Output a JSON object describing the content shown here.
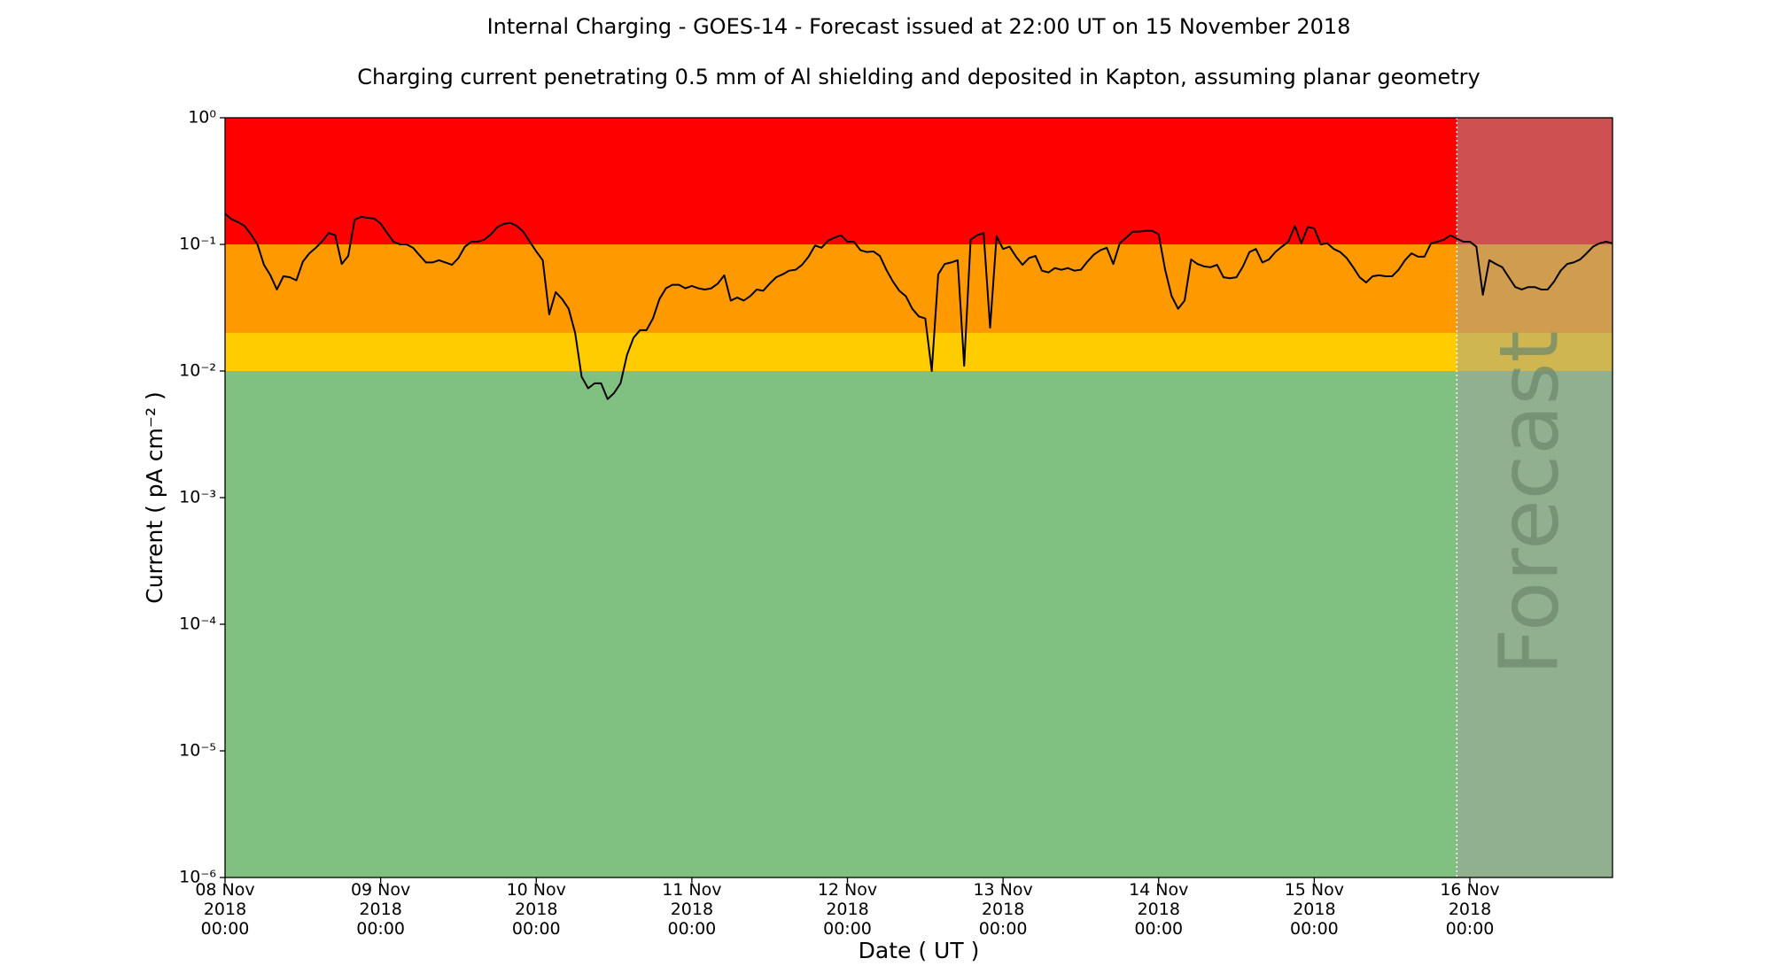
{
  "chart_data": {
    "type": "line",
    "title": "Internal Charging - GOES-14 - Forecast issued at 22:00 UT on 15 November 2018",
    "subtitle": "Charging current penetrating 0.5 mm of Al shielding and deposited in Kapton, assuming planar geometry",
    "xlabel": "Date ( UT )",
    "ylabel": "Current ( pA cm⁻² )",
    "yscale": "log",
    "ylim": [
      1e-06,
      1
    ],
    "yticks": [
      {
        "value": 1e-06,
        "label": "10⁻⁶"
      },
      {
        "value": 1e-05,
        "label": "10⁻⁵"
      },
      {
        "value": 0.0001,
        "label": "10⁻⁴"
      },
      {
        "value": 0.001,
        "label": "10⁻³"
      },
      {
        "value": 0.01,
        "label": "10⁻²"
      },
      {
        "value": 0.1,
        "label": "10⁻¹"
      },
      {
        "value": 1,
        "label": "10⁰"
      }
    ],
    "xlim": [
      "2018-11-08T00:00",
      "2018-11-16T22:00"
    ],
    "xticks": [
      {
        "value": "2018-11-08T00:00",
        "label": [
          "08 Nov",
          "2018",
          "00:00"
        ]
      },
      {
        "value": "2018-11-09T00:00",
        "label": [
          "09 Nov",
          "2018",
          "00:00"
        ]
      },
      {
        "value": "2018-11-10T00:00",
        "label": [
          "10 Nov",
          "2018",
          "00:00"
        ]
      },
      {
        "value": "2018-11-11T00:00",
        "label": [
          "11 Nov",
          "2018",
          "00:00"
        ]
      },
      {
        "value": "2018-11-12T00:00",
        "label": [
          "12 Nov",
          "2018",
          "00:00"
        ]
      },
      {
        "value": "2018-11-13T00:00",
        "label": [
          "13 Nov",
          "2018",
          "00:00"
        ]
      },
      {
        "value": "2018-11-14T00:00",
        "label": [
          "14 Nov",
          "2018",
          "00:00"
        ]
      },
      {
        "value": "2018-11-15T00:00",
        "label": [
          "15 Nov",
          "2018",
          "00:00"
        ]
      },
      {
        "value": "2018-11-16T00:00",
        "label": [
          "16 Nov",
          "2018",
          "00:00"
        ]
      }
    ],
    "bands": [
      {
        "from": 1e-06,
        "to": 0.01,
        "color": "#80c080"
      },
      {
        "from": 0.01,
        "to": 0.02,
        "color": "#ffcc00"
      },
      {
        "from": 0.02,
        "to": 0.1,
        "color": "#ff9900"
      },
      {
        "from": 0.1,
        "to": 1,
        "color": "#ff0000"
      }
    ],
    "forecast": {
      "start": "2018-11-15T22:00",
      "end": "2018-11-16T22:00",
      "label": "Forecast",
      "color": "#a0a0a0"
    },
    "x": [
      "2018-11-08T00:00",
      "2018-11-08T01:00",
      "2018-11-08T02:00",
      "2018-11-08T03:00",
      "2018-11-08T04:00",
      "2018-11-08T05:00",
      "2018-11-08T06:00",
      "2018-11-08T07:00",
      "2018-11-08T08:00",
      "2018-11-08T09:00",
      "2018-11-08T10:00",
      "2018-11-08T11:00",
      "2018-11-08T12:00",
      "2018-11-08T13:00",
      "2018-11-08T14:00",
      "2018-11-08T15:00",
      "2018-11-08T16:00",
      "2018-11-08T17:00",
      "2018-11-08T18:00",
      "2018-11-08T19:00",
      "2018-11-08T20:00",
      "2018-11-08T21:00",
      "2018-11-08T22:00",
      "2018-11-08T23:00",
      "2018-11-09T00:00",
      "2018-11-09T01:00",
      "2018-11-09T02:00",
      "2018-11-09T03:00",
      "2018-11-09T04:00",
      "2018-11-09T05:00",
      "2018-11-09T06:00",
      "2018-11-09T07:00",
      "2018-11-09T08:00",
      "2018-11-09T09:00",
      "2018-11-09T10:00",
      "2018-11-09T11:00",
      "2018-11-09T12:00",
      "2018-11-09T13:00",
      "2018-11-09T14:00",
      "2018-11-09T15:00",
      "2018-11-09T16:00",
      "2018-11-09T17:00",
      "2018-11-09T18:00",
      "2018-11-09T19:00",
      "2018-11-09T20:00",
      "2018-11-09T21:00",
      "2018-11-09T22:00",
      "2018-11-09T23:00",
      "2018-11-10T00:00",
      "2018-11-10T01:00",
      "2018-11-10T02:00",
      "2018-11-10T03:00",
      "2018-11-10T04:00",
      "2018-11-10T05:00",
      "2018-11-10T06:00",
      "2018-11-10T07:00",
      "2018-11-10T08:00",
      "2018-11-10T09:00",
      "2018-11-10T10:00",
      "2018-11-10T11:00",
      "2018-11-10T12:00",
      "2018-11-10T13:00",
      "2018-11-10T14:00",
      "2018-11-10T15:00",
      "2018-11-10T16:00",
      "2018-11-10T17:00",
      "2018-11-10T18:00",
      "2018-11-10T19:00",
      "2018-11-10T20:00",
      "2018-11-10T21:00",
      "2018-11-10T22:00",
      "2018-11-10T23:00",
      "2018-11-11T00:00",
      "2018-11-11T01:00",
      "2018-11-11T02:00",
      "2018-11-11T03:00",
      "2018-11-11T04:00",
      "2018-11-11T05:00",
      "2018-11-11T06:00",
      "2018-11-11T07:00",
      "2018-11-11T08:00",
      "2018-11-11T09:00",
      "2018-11-11T10:00",
      "2018-11-11T11:00",
      "2018-11-11T12:00",
      "2018-11-11T13:00",
      "2018-11-11T14:00",
      "2018-11-11T15:00",
      "2018-11-11T16:00",
      "2018-11-11T17:00",
      "2018-11-11T18:00",
      "2018-11-11T19:00",
      "2018-11-11T20:00",
      "2018-11-11T21:00",
      "2018-11-11T22:00",
      "2018-11-11T23:00",
      "2018-11-12T00:00",
      "2018-11-12T01:00",
      "2018-11-12T02:00",
      "2018-11-12T03:00",
      "2018-11-12T04:00",
      "2018-11-12T05:00",
      "2018-11-12T06:00",
      "2018-11-12T07:00",
      "2018-11-12T08:00",
      "2018-11-12T09:00",
      "2018-11-12T10:00",
      "2018-11-12T11:00",
      "2018-11-12T12:00",
      "2018-11-12T13:00",
      "2018-11-12T14:00",
      "2018-11-12T15:00",
      "2018-11-12T16:00",
      "2018-11-12T17:00",
      "2018-11-12T18:00",
      "2018-11-12T19:00",
      "2018-11-12T20:00",
      "2018-11-12T21:00",
      "2018-11-12T22:00",
      "2018-11-12T23:00",
      "2018-11-13T00:00",
      "2018-11-13T01:00",
      "2018-11-13T02:00",
      "2018-11-13T03:00",
      "2018-11-13T04:00",
      "2018-11-13T05:00",
      "2018-11-13T06:00",
      "2018-11-13T07:00",
      "2018-11-13T08:00",
      "2018-11-13T09:00",
      "2018-11-13T10:00",
      "2018-11-13T11:00",
      "2018-11-13T12:00",
      "2018-11-13T13:00",
      "2018-11-13T14:00",
      "2018-11-13T15:00",
      "2018-11-13T16:00",
      "2018-11-13T17:00",
      "2018-11-13T18:00",
      "2018-11-13T19:00",
      "2018-11-13T20:00",
      "2018-11-13T21:00",
      "2018-11-13T22:00",
      "2018-11-13T23:00",
      "2018-11-14T00:00",
      "2018-11-14T01:00",
      "2018-11-14T02:00",
      "2018-11-14T03:00",
      "2018-11-14T04:00",
      "2018-11-14T05:00",
      "2018-11-14T06:00",
      "2018-11-14T07:00",
      "2018-11-14T08:00",
      "2018-11-14T09:00",
      "2018-11-14T10:00",
      "2018-11-14T11:00",
      "2018-11-14T12:00",
      "2018-11-14T13:00",
      "2018-11-14T14:00",
      "2018-11-14T15:00",
      "2018-11-14T16:00",
      "2018-11-14T17:00",
      "2018-11-14T18:00",
      "2018-11-14T19:00",
      "2018-11-14T20:00",
      "2018-11-14T21:00",
      "2018-11-14T22:00",
      "2018-11-14T23:00",
      "2018-11-15T00:00",
      "2018-11-15T01:00",
      "2018-11-15T02:00",
      "2018-11-15T03:00",
      "2018-11-15T04:00",
      "2018-11-15T05:00",
      "2018-11-15T06:00",
      "2018-11-15T07:00",
      "2018-11-15T08:00",
      "2018-11-15T09:00",
      "2018-11-15T10:00",
      "2018-11-15T11:00",
      "2018-11-15T12:00",
      "2018-11-15T13:00",
      "2018-11-15T14:00",
      "2018-11-15T15:00",
      "2018-11-15T16:00",
      "2018-11-15T17:00",
      "2018-11-15T18:00",
      "2018-11-15T19:00",
      "2018-11-15T20:00",
      "2018-11-15T21:00",
      "2018-11-15T22:00",
      "2018-11-15T23:00",
      "2018-11-16T00:00",
      "2018-11-16T01:00",
      "2018-11-16T02:00",
      "2018-11-16T03:00",
      "2018-11-16T04:00",
      "2018-11-16T05:00",
      "2018-11-16T06:00",
      "2018-11-16T07:00",
      "2018-11-16T08:00",
      "2018-11-16T09:00",
      "2018-11-16T10:00",
      "2018-11-16T11:00",
      "2018-11-16T12:00",
      "2018-11-16T13:00",
      "2018-11-16T14:00",
      "2018-11-16T15:00",
      "2018-11-16T16:00",
      "2018-11-16T17:00",
      "2018-11-16T18:00",
      "2018-11-16T19:00",
      "2018-11-16T20:00",
      "2018-11-16T21:00",
      "2018-11-16T22:00"
    ],
    "series": [
      {
        "color": "#000000",
        "values": [
          0.175,
          0.158,
          0.15,
          0.14,
          0.12,
          0.1,
          0.069,
          0.057,
          0.044,
          0.056,
          0.055,
          0.052,
          0.073,
          0.085,
          0.094,
          0.106,
          0.123,
          0.118,
          0.07,
          0.081,
          0.157,
          0.165,
          0.162,
          0.16,
          0.146,
          0.123,
          0.105,
          0.1,
          0.1,
          0.094,
          0.082,
          0.072,
          0.072,
          0.075,
          0.072,
          0.069,
          0.078,
          0.096,
          0.105,
          0.105,
          0.109,
          0.12,
          0.137,
          0.145,
          0.148,
          0.14,
          0.126,
          0.105,
          0.088,
          0.075,
          0.028,
          0.042,
          0.037,
          0.031,
          0.02,
          0.009,
          0.0073,
          0.008,
          0.008,
          0.006,
          0.0067,
          0.008,
          0.0134,
          0.0183,
          0.021,
          0.021,
          0.026,
          0.037,
          0.045,
          0.048,
          0.048,
          0.045,
          0.047,
          0.045,
          0.044,
          0.045,
          0.049,
          0.057,
          0.036,
          0.038,
          0.036,
          0.039,
          0.044,
          0.043,
          0.049,
          0.055,
          0.058,
          0.062,
          0.063,
          0.069,
          0.08,
          0.098,
          0.094,
          0.107,
          0.113,
          0.118,
          0.105,
          0.105,
          0.09,
          0.087,
          0.088,
          0.081,
          0.063,
          0.051,
          0.043,
          0.039,
          0.031,
          0.027,
          0.026,
          0.01,
          0.058,
          0.07,
          0.072,
          0.075,
          0.011,
          0.109,
          0.118,
          0.123,
          0.022,
          0.116,
          0.092,
          0.096,
          0.08,
          0.069,
          0.078,
          0.081,
          0.062,
          0.06,
          0.065,
          0.063,
          0.065,
          0.062,
          0.063,
          0.073,
          0.083,
          0.09,
          0.094,
          0.07,
          0.102,
          0.113,
          0.126,
          0.126,
          0.128,
          0.128,
          0.12,
          0.063,
          0.039,
          0.031,
          0.036,
          0.076,
          0.07,
          0.067,
          0.066,
          0.069,
          0.055,
          0.054,
          0.055,
          0.067,
          0.087,
          0.092,
          0.072,
          0.076,
          0.087,
          0.096,
          0.105,
          0.14,
          0.102,
          0.137,
          0.134,
          0.1,
          0.102,
          0.092,
          0.087,
          0.078,
          0.066,
          0.055,
          0.05,
          0.056,
          0.057,
          0.056,
          0.056,
          0.063,
          0.075,
          0.085,
          0.08,
          0.08,
          0.102,
          0.105,
          0.109,
          0.118,
          0.111,
          0.105,
          0.105,
          0.096,
          0.04,
          0.075,
          0.07,
          0.066,
          0.055,
          0.046,
          0.044,
          0.046,
          0.046,
          0.044,
          0.044,
          0.051,
          0.062,
          0.07,
          0.072,
          0.076,
          0.085,
          0.096,
          0.102,
          0.105,
          0.102
        ]
      }
    ]
  }
}
